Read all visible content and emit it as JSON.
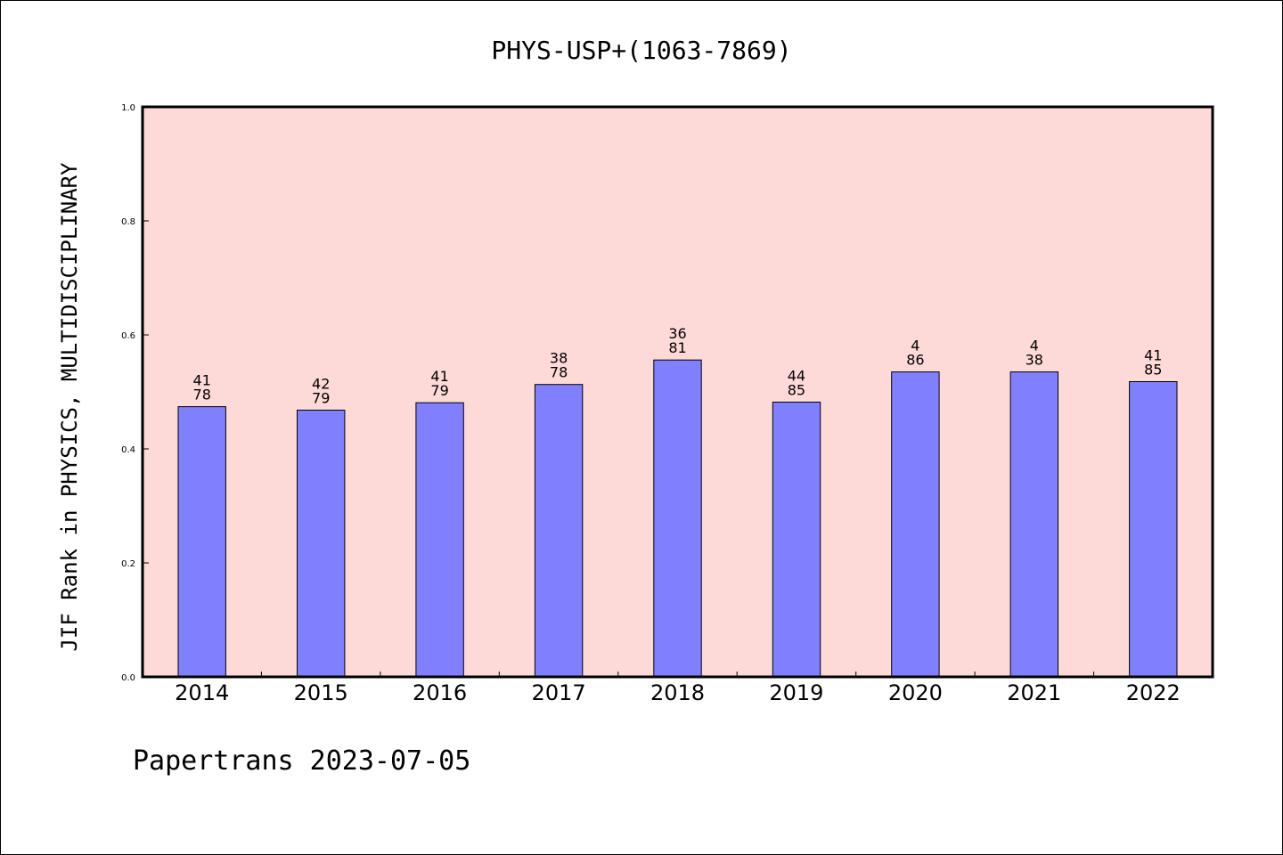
{
  "chart_data": {
    "type": "bar",
    "title": "PHYS-USP+(1063-7869)",
    "xlabel": "",
    "ylabel": "JIF Rank in PHYSICS, MULTIDISCIPLINARY",
    "categories": [
      "2014",
      "2015",
      "2016",
      "2017",
      "2018",
      "2019",
      "2020",
      "2021",
      "2022"
    ],
    "values": [
      0.474,
      0.468,
      0.481,
      0.513,
      0.556,
      0.482,
      0.535,
      0.535,
      0.518
    ],
    "data_labels": [
      {
        "top": "41",
        "bottom": "78"
      },
      {
        "top": "42",
        "bottom": "79"
      },
      {
        "top": "41",
        "bottom": "79"
      },
      {
        "top": "38",
        "bottom": "78"
      },
      {
        "top": "36",
        "bottom": "81"
      },
      {
        "top": "44",
        "bottom": "85"
      },
      {
        "top": "4",
        "bottom": "86"
      },
      {
        "top": "4",
        "bottom": "38"
      },
      {
        "top": "41",
        "bottom": "85"
      }
    ],
    "ylim": [
      0,
      1.0
    ],
    "yticks": [
      "0.0",
      "0.2",
      "0.4",
      "0.6",
      "0.8",
      "1.0"
    ],
    "grid": false,
    "colors": {
      "bar": "#8080ff",
      "plot_background": "#fddad7",
      "axis": "#000000"
    }
  },
  "footer": {
    "source": "Papertrans 2023-07-05"
  }
}
